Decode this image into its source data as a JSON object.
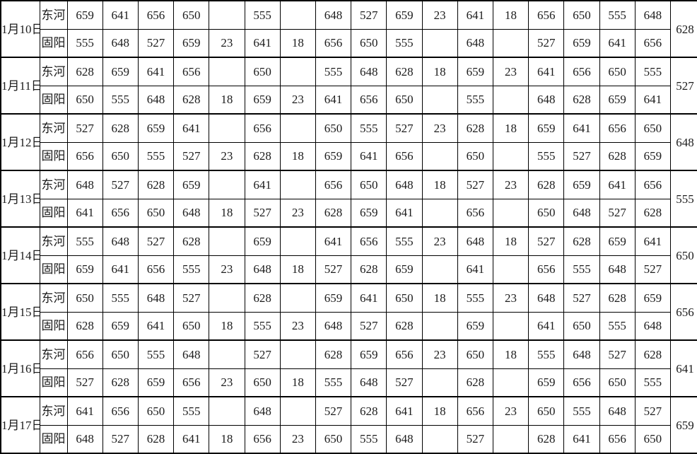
{
  "colors": {
    "background": "#ffffff",
    "border": "#000000",
    "text": "#1c1c1c"
  },
  "table": {
    "site_labels": [
      "东河",
      "固阳"
    ],
    "num_value_columns": 17,
    "groups": [
      {
        "date": "1月10日",
        "dong_he": [
          "659",
          "641",
          "656",
          "650",
          "",
          "555",
          "",
          "648",
          "527",
          "659",
          "23",
          "641",
          "18",
          "656",
          "650",
          "555",
          "648"
        ],
        "gu_yang": [
          "555",
          "648",
          "527",
          "659",
          "23",
          "641",
          "18",
          "656",
          "650",
          "555",
          "",
          "648",
          "",
          "527",
          "659",
          "641",
          "656"
        ],
        "total": "628"
      },
      {
        "date": "1月11日",
        "dong_he": [
          "628",
          "659",
          "641",
          "656",
          "",
          "650",
          "",
          "555",
          "648",
          "628",
          "18",
          "659",
          "23",
          "641",
          "656",
          "650",
          "555"
        ],
        "gu_yang": [
          "650",
          "555",
          "648",
          "628",
          "18",
          "659",
          "23",
          "641",
          "656",
          "650",
          "",
          "555",
          "",
          "648",
          "628",
          "659",
          "641"
        ],
        "total": "527"
      },
      {
        "date": "1月12日",
        "dong_he": [
          "527",
          "628",
          "659",
          "641",
          "",
          "656",
          "",
          "650",
          "555",
          "527",
          "23",
          "628",
          "18",
          "659",
          "641",
          "656",
          "650"
        ],
        "gu_yang": [
          "656",
          "650",
          "555",
          "527",
          "23",
          "628",
          "18",
          "659",
          "641",
          "656",
          "",
          "650",
          "",
          "555",
          "527",
          "628",
          "659"
        ],
        "total": "648"
      },
      {
        "date": "1月13日",
        "dong_he": [
          "648",
          "527",
          "628",
          "659",
          "",
          "641",
          "",
          "656",
          "650",
          "648",
          "18",
          "527",
          "23",
          "628",
          "659",
          "641",
          "656"
        ],
        "gu_yang": [
          "641",
          "656",
          "650",
          "648",
          "18",
          "527",
          "23",
          "628",
          "659",
          "641",
          "",
          "656",
          "",
          "650",
          "648",
          "527",
          "628"
        ],
        "total": "555"
      },
      {
        "date": "1月14日",
        "dong_he": [
          "555",
          "648",
          "527",
          "628",
          "",
          "659",
          "",
          "641",
          "656",
          "555",
          "23",
          "648",
          "18",
          "527",
          "628",
          "659",
          "641"
        ],
        "gu_yang": [
          "659",
          "641",
          "656",
          "555",
          "23",
          "648",
          "18",
          "527",
          "628",
          "659",
          "",
          "641",
          "",
          "656",
          "555",
          "648",
          "527"
        ],
        "total": "650"
      },
      {
        "date": "1月15日",
        "dong_he": [
          "650",
          "555",
          "648",
          "527",
          "",
          "628",
          "",
          "659",
          "641",
          "650",
          "18",
          "555",
          "23",
          "648",
          "527",
          "628",
          "659"
        ],
        "gu_yang": [
          "628",
          "659",
          "641",
          "650",
          "18",
          "555",
          "23",
          "648",
          "527",
          "628",
          "",
          "659",
          "",
          "641",
          "650",
          "555",
          "648"
        ],
        "total": "656"
      },
      {
        "date": "1月16日",
        "dong_he": [
          "656",
          "650",
          "555",
          "648",
          "",
          "527",
          "",
          "628",
          "659",
          "656",
          "23",
          "650",
          "18",
          "555",
          "648",
          "527",
          "628"
        ],
        "gu_yang": [
          "527",
          "628",
          "659",
          "656",
          "23",
          "650",
          "18",
          "555",
          "648",
          "527",
          "",
          "628",
          "",
          "659",
          "656",
          "650",
          "555"
        ],
        "total": "641"
      },
      {
        "date": "1月17日",
        "dong_he": [
          "641",
          "656",
          "650",
          "555",
          "",
          "648",
          "",
          "527",
          "628",
          "641",
          "18",
          "656",
          "23",
          "650",
          "555",
          "648",
          "527"
        ],
        "gu_yang": [
          "648",
          "527",
          "628",
          "641",
          "18",
          "656",
          "23",
          "650",
          "555",
          "648",
          "",
          "527",
          "",
          "628",
          "641",
          "656",
          "650"
        ],
        "total": "659"
      }
    ]
  }
}
